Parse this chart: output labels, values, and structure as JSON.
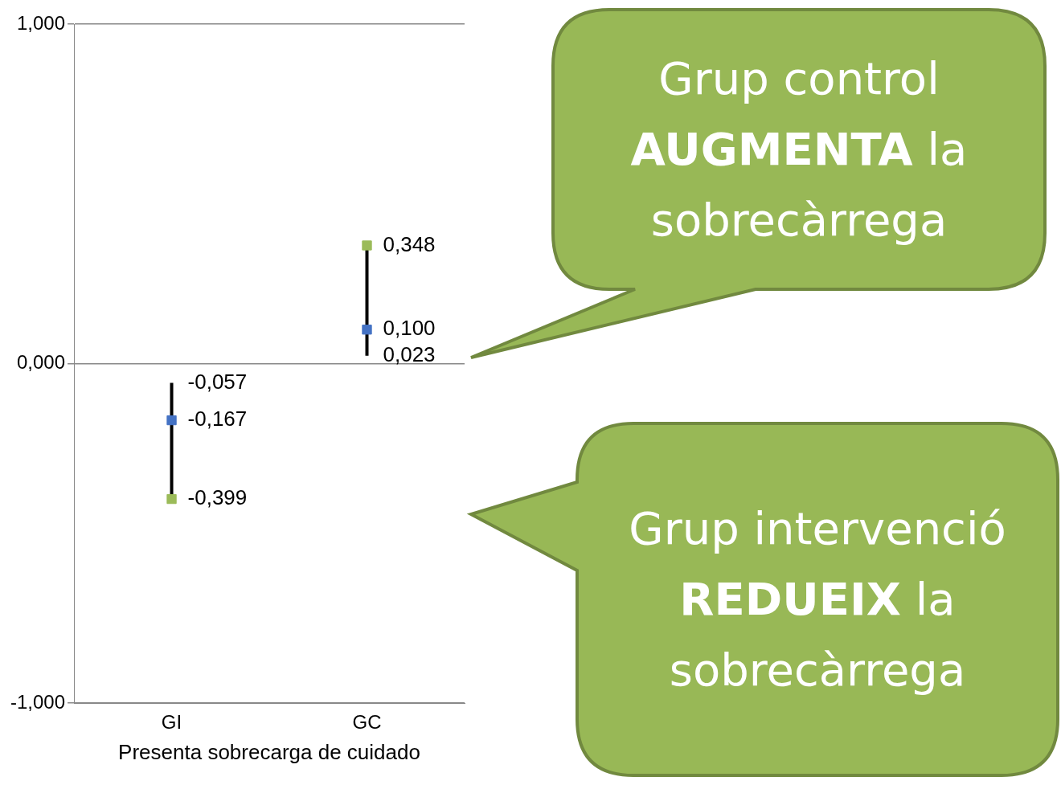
{
  "chart_data": {
    "type": "scatter",
    "xlabel": "Presenta sobrecarga de cuidado",
    "categories": [
      "GI",
      "GC"
    ],
    "ylim": [
      -1,
      1
    ],
    "yticks": [
      {
        "value": 1,
        "label": "1,000"
      },
      {
        "value": 0,
        "label": "0,000"
      },
      {
        "value": -1,
        "label": "-1,000"
      }
    ],
    "grid": "y",
    "legend": false,
    "marker": "square",
    "series": [
      {
        "type": "line",
        "marker": "none",
        "color": "#000000",
        "x": [
          "GI",
          "GI"
        ],
        "values": [
          -0.399,
          -0.057
        ]
      },
      {
        "type": "line",
        "marker": "none",
        "color": "#000000",
        "x": [
          "GC",
          "GC"
        ],
        "values": [
          0.023,
          0.348
        ]
      },
      {
        "color": "#4472c4",
        "values": [
          -0.167,
          0.1
        ],
        "value_labels": [
          "-0,167",
          "0,100"
        ]
      },
      {
        "color": "#9bbb59",
        "values": [
          -0.399,
          0.348
        ],
        "value_labels": [
          "-0,399",
          "0,348"
        ]
      }
    ],
    "annotations": [
      {
        "text": "-0,057",
        "x": "GI",
        "y": -0.057
      },
      {
        "text": "0,023",
        "x": "GC",
        "y": 0.023
      },
      "Grup control AUGMENTA la sobrecàrrega",
      "Grup intervenció REDUEIX la sobrecàrrega"
    ]
  }
}
